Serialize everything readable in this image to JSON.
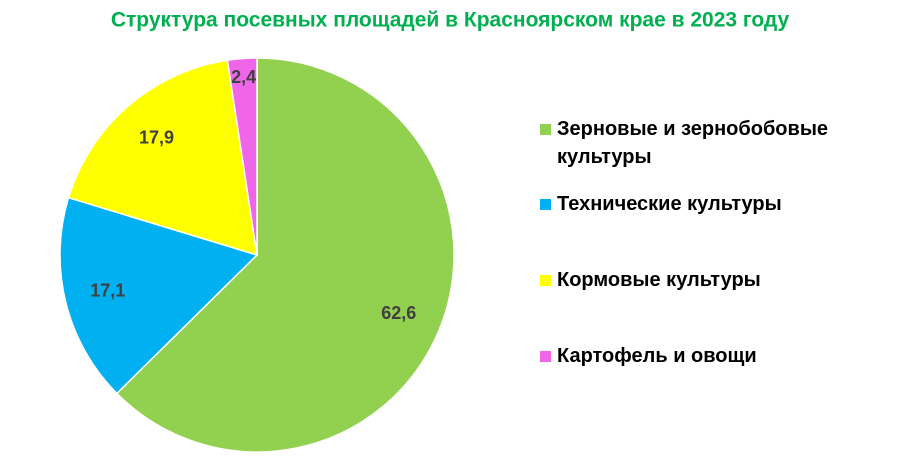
{
  "chart_data": {
    "type": "pie",
    "title": "Структура посевных площадей в Красноярском крае в 2023 году",
    "categories": [
      "Зерновые и зернобобовые культуры",
      "Технические культуры",
      "Кормовые культуры",
      "Картофель и овощи"
    ],
    "values": [
      62.6,
      17.1,
      17.9,
      2.4
    ],
    "value_labels": [
      "62,6",
      "17,1",
      "17,9",
      "2,4"
    ],
    "colors": [
      "#92d050",
      "#00b0f0",
      "#ffff00",
      "#f066e8"
    ],
    "legend": "right"
  }
}
